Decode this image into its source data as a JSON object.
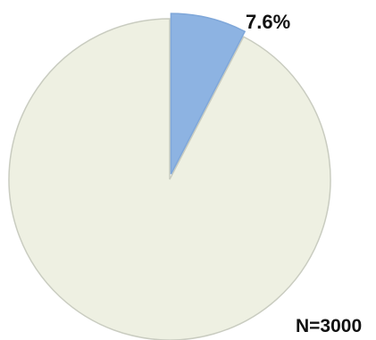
{
  "chart_data": {
    "type": "pie",
    "slices": [
      {
        "value": 7.6,
        "label": "7.6%",
        "color": "#8db3e2",
        "exploded": true
      },
      {
        "value": 92.4,
        "label": "",
        "color": "#eef0e2",
        "exploded": false
      }
    ],
    "start_angle_deg": 0,
    "direction": "clockwise",
    "annotation": "N=3000",
    "edge_color": "#c9ccc0",
    "exploded_edge_color": "#7fa7d9"
  }
}
